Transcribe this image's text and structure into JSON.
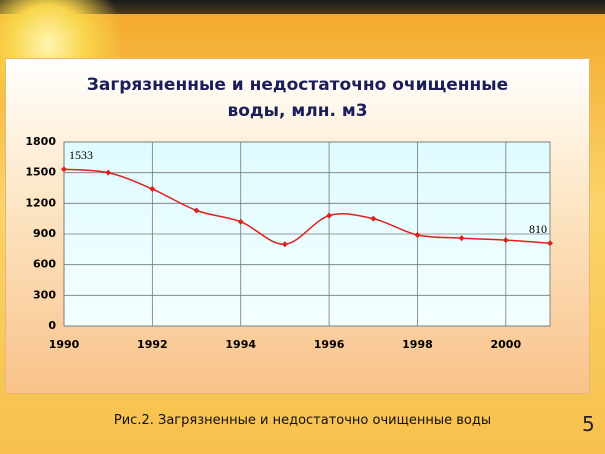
{
  "chart_data": {
    "type": "line",
    "title": "Загрязненные и недостаточно очищенные воды, млн. м3",
    "x": [
      1990,
      1991,
      1992,
      1993,
      1994,
      1995,
      1996,
      1997,
      1998,
      1999,
      2000,
      2001
    ],
    "series": [
      {
        "color": "#e0201c",
        "values": [
          1533,
          1500,
          1340,
          1130,
          1020,
          800,
          1080,
          1050,
          890,
          860,
          840,
          810
        ],
        "value_labels": [
          "1533",
          null,
          null,
          null,
          null,
          null,
          null,
          null,
          null,
          null,
          null,
          "810"
        ]
      }
    ],
    "xlim": [
      1990,
      2001
    ],
    "xticks": [
      1990,
      1992,
      1994,
      1996,
      1998,
      2000
    ],
    "ylim": [
      0,
      1800
    ],
    "yticks": [
      0,
      300,
      600,
      900,
      1200,
      1500,
      1800
    ],
    "grid": true
  },
  "caption": "Рис.2. Загрязненные и недостаточно очищенные воды",
  "page_number": "5"
}
